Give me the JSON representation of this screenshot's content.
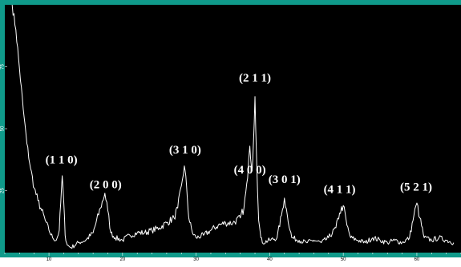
{
  "colors": {
    "plot_background": "#000000",
    "frame": "#0f9a8a",
    "trace": "#ffffff",
    "label_text": "#ffffff",
    "tick_label_text": "#000000",
    "page_background": "#ffffff"
  },
  "chart_data": {
    "type": "line",
    "title": "",
    "xlabel": "",
    "ylabel": "",
    "xlim": [
      4,
      66
    ],
    "ylim": [
      0,
      100
    ],
    "grid": false,
    "legend": "none",
    "x_ticks": [
      10,
      20,
      30,
      40,
      50,
      60
    ],
    "x_tick_labels": [
      "10",
      "20",
      "30",
      "40",
      "50",
      "60"
    ],
    "y_ticks": [
      25,
      50,
      75
    ],
    "y_tick_labels": [
      "25",
      "50",
      "75"
    ],
    "series": [
      {
        "x": [
          5.0,
          5.5,
          6.0,
          6.5,
          7.0,
          7.5,
          8.0,
          8.5,
          9.0,
          9.5,
          10.0,
          10.5,
          11.0,
          11.4,
          11.6,
          11.8,
          12.0,
          12.2,
          12.5,
          13.0,
          14.0,
          15.0,
          16.0,
          17.0,
          17.6,
          18.0,
          18.4,
          19.0,
          20.0,
          21.0,
          22.0,
          23.0,
          24.0,
          25.0,
          26.0,
          27.0,
          27.5,
          28.0,
          28.4,
          28.7,
          29.0,
          29.5,
          30.0,
          31.0,
          32.0,
          33.0,
          34.0,
          35.0,
          36.0,
          36.5,
          37.0,
          37.3,
          37.6,
          37.8,
          38.0,
          38.2,
          38.5,
          38.8,
          39.0,
          40.0,
          41.0,
          41.6,
          42.0,
          42.4,
          43.0,
          44.0,
          45.0,
          46.0,
          47.0,
          48.0,
          49.0,
          49.5,
          50.0,
          50.5,
          51.0,
          52.0,
          53.0,
          54.0,
          55.0,
          56.0,
          57.0,
          58.0,
          59.0,
          59.6,
          60.0,
          60.4,
          61.0,
          62.0,
          63.0,
          64.0,
          65.0
        ],
        "y": [
          100,
          90,
          74,
          58,
          44,
          34,
          26,
          21,
          17,
          13,
          9,
          6,
          5,
          9,
          20,
          31,
          21,
          7,
          3,
          2,
          4,
          5,
          8,
          18,
          24,
          17,
          8,
          6,
          5,
          7,
          8,
          8,
          9,
          10,
          12,
          14,
          18,
          27,
          35,
          27,
          14,
          8,
          6,
          7,
          9,
          11,
          12,
          12,
          14,
          18,
          30,
          43,
          33,
          45,
          63,
          40,
          13,
          6,
          4,
          5,
          6,
          15,
          22,
          15,
          6,
          5,
          4,
          5,
          4,
          6,
          10,
          16,
          19,
          11,
          6,
          5,
          4,
          6,
          5,
          4,
          5,
          4,
          6,
          15,
          20,
          14,
          6,
          5,
          6,
          5,
          4
        ]
      }
    ],
    "annotations": [
      {
        "text": "(1 1 0)",
        "x": 11.7,
        "y": 36
      },
      {
        "text": "(2 0 0)",
        "x": 17.7,
        "y": 26
      },
      {
        "text": "(3 1 0)",
        "x": 28.5,
        "y": 40
      },
      {
        "text": "(4 0 0)",
        "x": 37.3,
        "y": 32
      },
      {
        "text": "(2 1 1)",
        "x": 38.0,
        "y": 69
      },
      {
        "text": "(3 0 1)",
        "x": 42.0,
        "y": 28
      },
      {
        "text": "(4 1 1)",
        "x": 49.5,
        "y": 24
      },
      {
        "text": "(5 2 1)",
        "x": 59.9,
        "y": 25
      }
    ]
  }
}
